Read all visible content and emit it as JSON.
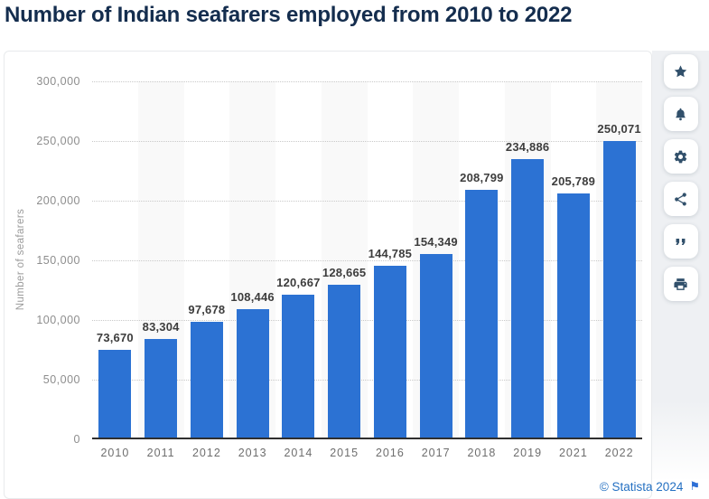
{
  "title": "Number of Indian seafarers employed from 2010 to 2022",
  "chart_data": {
    "type": "bar",
    "title": "Number of Indian seafarers employed from 2010 to 2022",
    "categories": [
      "2010",
      "2011",
      "2012",
      "2013",
      "2014",
      "2015",
      "2016",
      "2017",
      "2018",
      "2019",
      "2021",
      "2022"
    ],
    "values": [
      73670,
      83304,
      97678,
      108446,
      120667,
      128665,
      144785,
      154349,
      208799,
      234886,
      205789,
      250071
    ],
    "value_labels": [
      "73,670",
      "83,304",
      "97,678",
      "108,446",
      "120,667",
      "128,665",
      "144,785",
      "154,349",
      "208,799",
      "234,886",
      "205,789",
      "250,071"
    ],
    "ylabel": "Number of seafarers",
    "xlabel": "",
    "ylim": [
      0,
      300000
    ],
    "ytick_step": 50000,
    "yticks_bottom_to_top": [
      "0",
      "50,000",
      "100,000",
      "150,000",
      "200,000",
      "250,000",
      "300,000"
    ],
    "grid": "horizontal-dotted",
    "legend": "none",
    "bar_color": "#2c72d3",
    "alt_band_color": "#f9f9f9"
  },
  "toolbar": {
    "items": [
      {
        "name": "favorite",
        "icon": "star-icon"
      },
      {
        "name": "notifications",
        "icon": "bell-icon"
      },
      {
        "name": "settings",
        "icon": "gear-icon"
      },
      {
        "name": "share",
        "icon": "share-icon"
      },
      {
        "name": "cite",
        "icon": "quote-icon"
      },
      {
        "name": "print",
        "icon": "printer-icon"
      }
    ]
  },
  "footer": {
    "copyright": "© Statista 2024",
    "flag_icon": "flag-icon"
  },
  "colors": {
    "accent_blue": "#2c72d3",
    "title_navy": "#142d4e",
    "link_blue": "#2470c2",
    "icon_navy": "#31506b"
  }
}
